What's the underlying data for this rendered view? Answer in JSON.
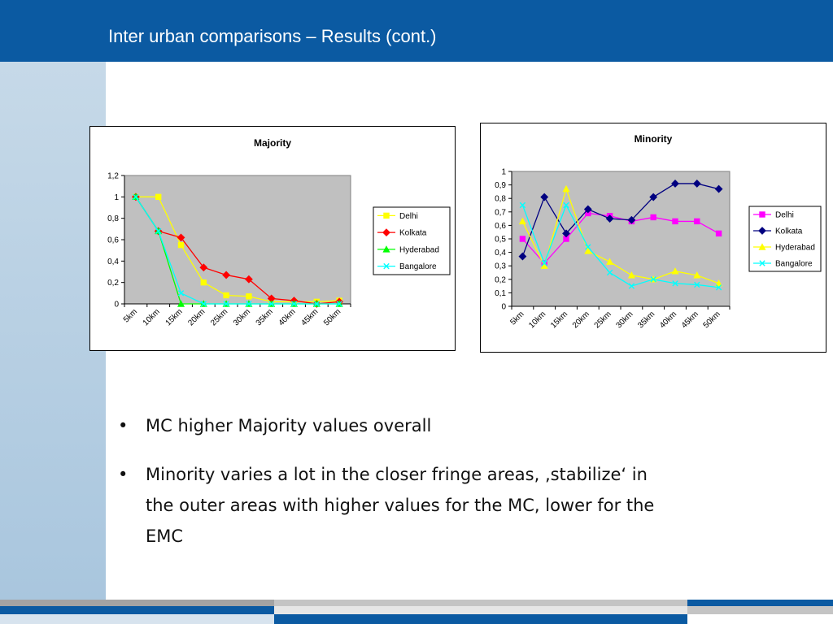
{
  "slide": {
    "title": "Inter urban comparisons – Results (cont.)",
    "bullets": [
      "MC higher Majority values overall",
      "Minority varies a lot in the closer fringe areas, ‚stabilize‘ in the outer areas with higher values for the MC, lower for the EMC"
    ],
    "bullet_symbol": "•"
  },
  "colors": {
    "header": "#0b5aa2",
    "plot_area": "#c0c0c0",
    "Delhi": "#ff00ff",
    "Kolkata": "#000080",
    "Hyderabad": "#ffff00",
    "Bangalore": "#00ffff"
  },
  "chart_data": [
    {
      "type": "line",
      "title": "Majority",
      "categories": [
        "5km",
        "10km",
        "15km",
        "20km",
        "25km",
        "30km",
        "35km",
        "40km",
        "45km",
        "50km"
      ],
      "ylim": [
        0,
        1.2
      ],
      "yticks": [
        "0",
        "0,2",
        "0,4",
        "0,6",
        "0,8",
        "1",
        "1,2"
      ],
      "legend_position": "right",
      "grid": false,
      "series": [
        {
          "name": "Delhi",
          "color": "#ffff00",
          "marker": "square",
          "values": [
            1,
            1,
            0.55,
            0.2,
            0.08,
            0.07,
            0.02,
            0.02,
            0.02,
            0.03
          ]
        },
        {
          "name": "Kolkata",
          "color": "#ff0000",
          "marker": "diamond",
          "values": [
            1,
            0.68,
            0.62,
            0.34,
            0.27,
            0.23,
            0.05,
            0.03,
            0.0,
            0.02
          ]
        },
        {
          "name": "Hyderabad",
          "color": "#00ff00",
          "marker": "triangle",
          "values": [
            1,
            0.68,
            0.0,
            0.0,
            0.0,
            0.0,
            0.0,
            0.0,
            0.0,
            0.0
          ]
        },
        {
          "name": "Bangalore",
          "color": "#00ffff",
          "marker": "x",
          "values": [
            1,
            0.68,
            0.1,
            0.0,
            0.0,
            0.0,
            0.0,
            0.0,
            0.0,
            0.0
          ]
        }
      ]
    },
    {
      "type": "line",
      "title": "Minority",
      "categories": [
        "5km",
        "10km",
        "15km",
        "20km",
        "25km",
        "30km",
        "35km",
        "40km",
        "45km",
        "50km"
      ],
      "ylim": [
        0,
        1
      ],
      "yticks": [
        "0",
        "0,1",
        "0,2",
        "0,3",
        "0,4",
        "0,5",
        "0,6",
        "0,7",
        "0,8",
        "0,9",
        "1"
      ],
      "legend_position": "right",
      "grid": false,
      "series": [
        {
          "name": "Delhi",
          "color": "#ff00ff",
          "marker": "square",
          "values": [
            0.5,
            0.32,
            0.5,
            0.69,
            0.67,
            0.63,
            0.66,
            0.63,
            0.63,
            0.54
          ]
        },
        {
          "name": "Kolkata",
          "color": "#000080",
          "marker": "diamond",
          "values": [
            0.37,
            0.81,
            0.54,
            0.72,
            0.65,
            0.64,
            0.81,
            0.91,
            0.91,
            0.87
          ]
        },
        {
          "name": "Hyderabad",
          "color": "#ffff00",
          "marker": "triangle",
          "values": [
            0.63,
            0.3,
            0.87,
            0.41,
            0.33,
            0.23,
            0.2,
            0.26,
            0.23,
            0.17
          ]
        },
        {
          "name": "Bangalore",
          "color": "#00ffff",
          "marker": "x",
          "values": [
            0.75,
            0.32,
            0.75,
            0.44,
            0.25,
            0.15,
            0.2,
            0.17,
            0.16,
            0.14
          ]
        }
      ]
    }
  ]
}
